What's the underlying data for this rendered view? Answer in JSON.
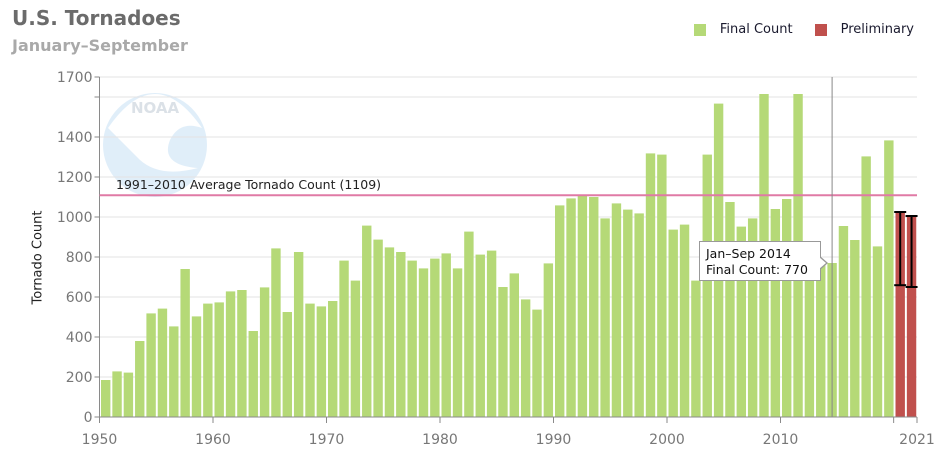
{
  "header": {
    "title": "U.S. Tornadoes",
    "subtitle": "January–September"
  },
  "legend": [
    {
      "label": "Final Count",
      "color": "#b5d977"
    },
    {
      "label": "Preliminary",
      "color": "#c0504d"
    }
  ],
  "tooltip": {
    "line1": "Jan–Sep 2014",
    "line2": "Final Count: 770"
  },
  "average_line": {
    "label": "1991–2010 Average Tornado Count (1109)",
    "value": 1109,
    "color": "#e07aa5"
  },
  "watermark": "NOAA",
  "colors": {
    "final": "#b5d977",
    "preliminary": "#c0504d",
    "grid": "#e3e3e3",
    "axis": "#8a8a8a"
  },
  "chart_data": {
    "type": "bar",
    "title": "U.S. Tornadoes",
    "subtitle": "January–September",
    "xlabel": "",
    "ylabel": "Tornado Count",
    "ylim": [
      0,
      1700
    ],
    "yticks": [
      0,
      200,
      400,
      600,
      800,
      1000,
      1200,
      1400,
      1700
    ],
    "xticks": [
      1950,
      1960,
      1970,
      1980,
      1990,
      2000,
      2010,
      2021
    ],
    "grid": true,
    "legend_position": "top-right",
    "categories": [
      1950,
      1951,
      1952,
      1953,
      1954,
      1955,
      1956,
      1957,
      1958,
      1959,
      1960,
      1961,
      1962,
      1963,
      1964,
      1965,
      1966,
      1967,
      1968,
      1969,
      1970,
      1971,
      1972,
      1973,
      1974,
      1975,
      1976,
      1977,
      1978,
      1979,
      1980,
      1981,
      1982,
      1983,
      1984,
      1985,
      1986,
      1987,
      1988,
      1989,
      1990,
      1991,
      1992,
      1993,
      1994,
      1995,
      1996,
      1997,
      1998,
      1999,
      2000,
      2001,
      2002,
      2003,
      2004,
      2005,
      2006,
      2007,
      2008,
      2009,
      2010,
      2011,
      2012,
      2013,
      2014,
      2015,
      2016,
      2017,
      2018,
      2019,
      2020,
      2021
    ],
    "series": [
      {
        "name": "Final Count",
        "values": [
          185,
          228,
          222,
          380,
          518,
          542,
          453,
          740,
          503,
          567,
          573,
          628,
          635,
          430,
          648,
          843,
          525,
          825,
          567,
          553,
          580,
          782,
          682,
          957,
          887,
          848,
          825,
          782,
          743,
          792,
          818,
          743,
          927,
          812,
          832,
          650,
          718,
          588,
          537,
          768,
          1058,
          1093,
          1108,
          1100,
          993,
          1068,
          1037,
          1018,
          1318,
          1312,
          937,
          962,
          682,
          1312,
          1567,
          1075,
          952,
          993,
          1615,
          1040,
          1090,
          1615,
          800,
          780,
          770,
          955,
          885,
          1303,
          853,
          1383,
          null,
          null
        ]
      },
      {
        "name": "Preliminary",
        "values": [
          null,
          null,
          null,
          null,
          null,
          null,
          null,
          null,
          null,
          null,
          null,
          null,
          null,
          null,
          null,
          null,
          null,
          null,
          null,
          null,
          null,
          null,
          null,
          null,
          null,
          null,
          null,
          null,
          null,
          null,
          null,
          null,
          null,
          null,
          null,
          null,
          null,
          null,
          null,
          null,
          null,
          null,
          null,
          null,
          null,
          null,
          null,
          null,
          null,
          null,
          null,
          null,
          null,
          null,
          null,
          null,
          null,
          null,
          null,
          null,
          null,
          null,
          null,
          null,
          null,
          null,
          null,
          null,
          null,
          null,
          1025,
          1005
        ],
        "error_bars": {
          "2020": [
            659,
            1025
          ],
          "2021": [
            650,
            1005
          ]
        }
      }
    ],
    "annotations": [
      {
        "type": "hline",
        "y": 1109,
        "label": "1991–2010 Average Tornado Count (1109)"
      },
      {
        "type": "vline",
        "x": 2014,
        "tooltip": "Jan–Sep 2014 / Final Count: 770"
      }
    ]
  }
}
